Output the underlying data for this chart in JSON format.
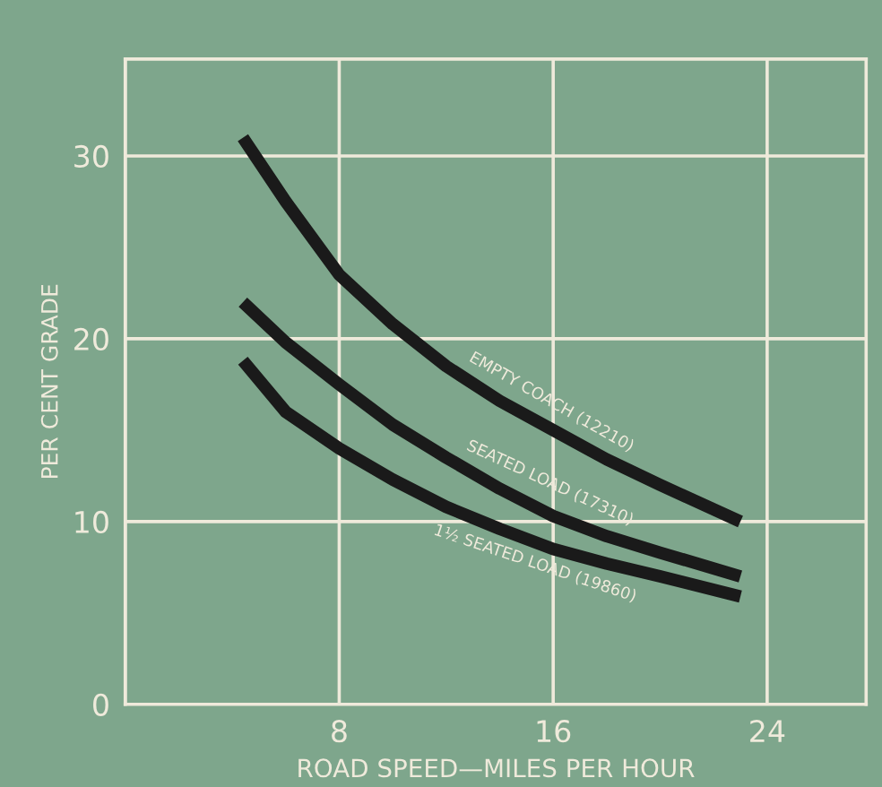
{
  "chart_data": {
    "type": "line",
    "xlabel": "ROAD SPEED—MILES PER HOUR",
    "ylabel": "PER CENT GRADE",
    "xlim": [
      0,
      27.7
    ],
    "ylim": [
      0,
      35.3
    ],
    "xticks": [
      {
        "value": 0,
        "label": null
      },
      8,
      16,
      24
    ],
    "yticks": [
      0,
      10,
      20,
      30
    ],
    "grid": true,
    "legend": false,
    "marker": "none",
    "line_style": "solid",
    "series": [
      {
        "name": "EMPTY COACH (12210)",
        "color": "#1a1a1a",
        "x": [
          4.4,
          6,
          8,
          10,
          12,
          14,
          16,
          18,
          20,
          23
        ],
        "values": [
          31,
          27.5,
          23.5,
          20.8,
          18.5,
          16.6,
          15,
          13.4,
          12,
          10
        ]
      },
      {
        "name": "SEATED LOAD (17310)",
        "color": "#1a1a1a",
        "x": [
          4.4,
          6,
          8,
          10,
          12,
          14,
          16,
          18,
          20,
          23
        ],
        "values": [
          22,
          19.8,
          17.5,
          15.3,
          13.5,
          11.8,
          10.3,
          9.2,
          8.3,
          7
        ]
      },
      {
        "name": "1½ SEATED LOAD (19860)",
        "color": "#1a1a1a",
        "x": [
          4.4,
          6,
          8,
          10,
          12,
          14,
          16,
          18,
          20,
          23
        ],
        "values": [
          18.8,
          16,
          14,
          12.3,
          10.8,
          9.6,
          8.5,
          7.7,
          7,
          5.9
        ]
      }
    ]
  }
}
